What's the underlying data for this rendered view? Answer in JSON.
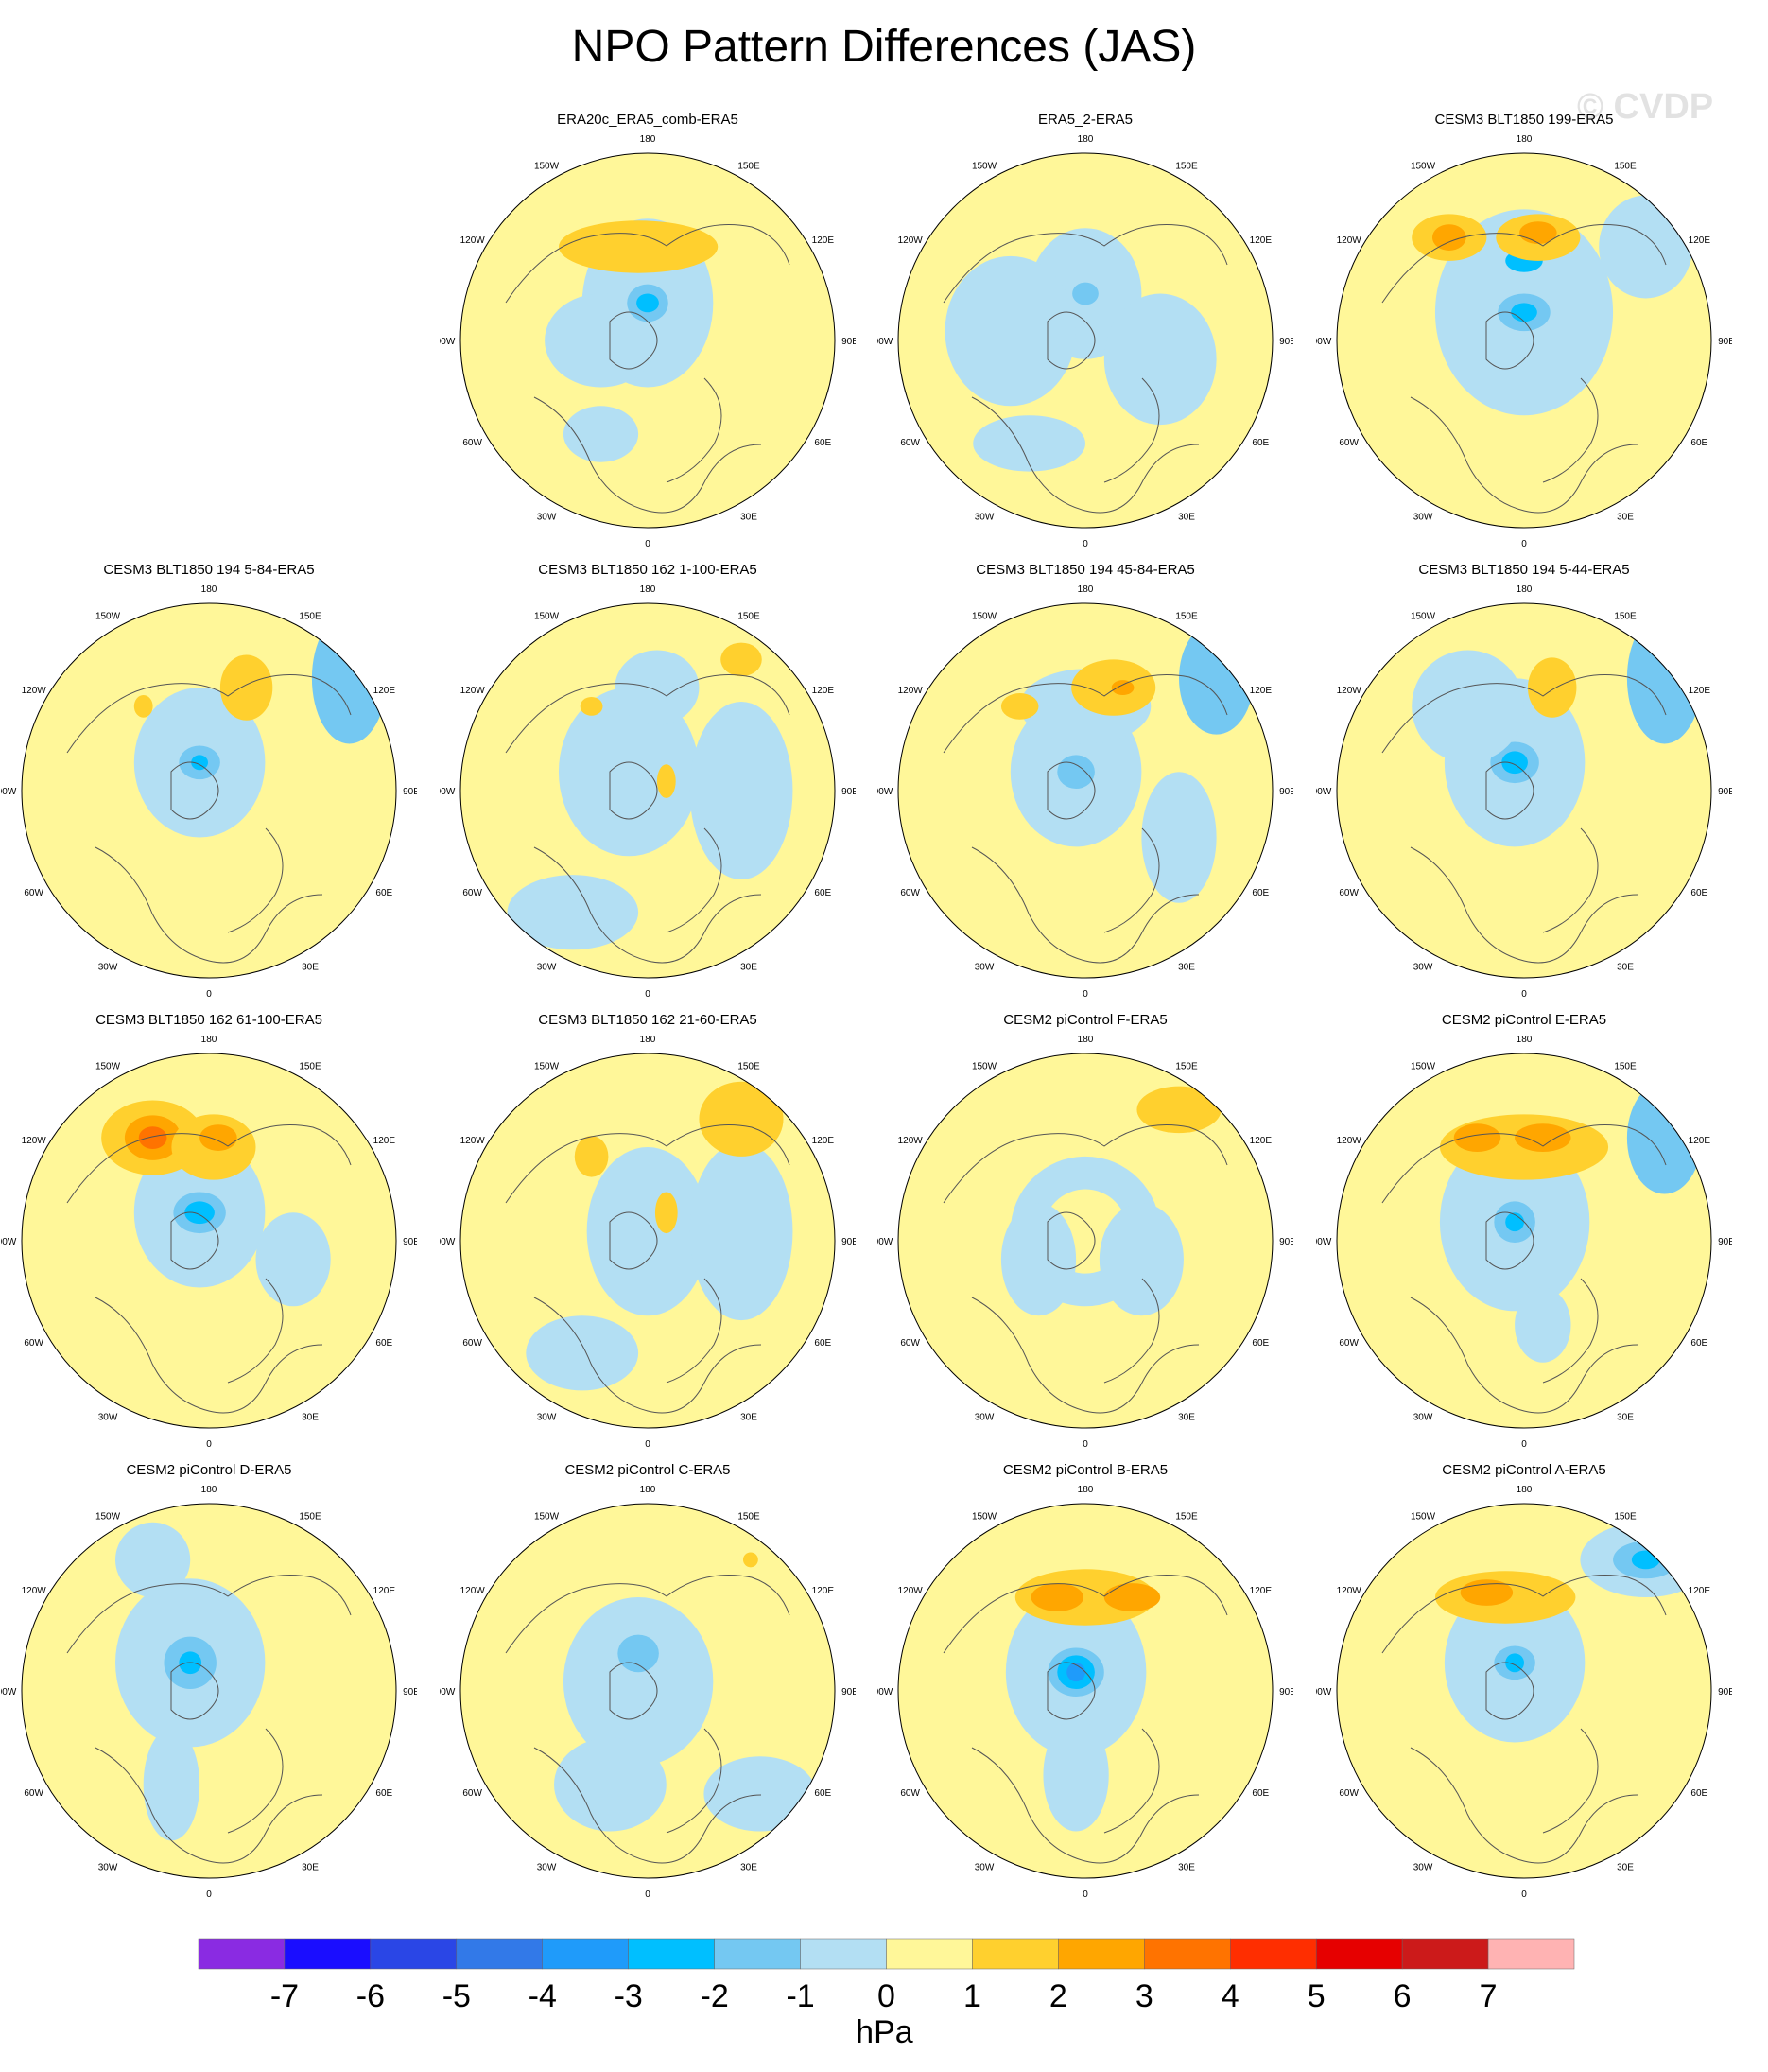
{
  "title": "NPO Pattern Differences (JAS)",
  "watermark": "© CVDP",
  "lon_labels": [
    "180",
    "150E",
    "120E",
    "90E",
    "60E",
    "30E",
    "0",
    "30W",
    "60W",
    "90W",
    "120W",
    "150W"
  ],
  "panels": [
    {
      "title": "ERA20c_ERA5_comb-ERA5"
    },
    {
      "title": "ERA5_2-ERA5"
    },
    {
      "title": "CESM3 BLT1850 199-ERA5"
    },
    {
      "title": "CESM3 BLT1850 194 5-84-ERA5"
    },
    {
      "title": "CESM3 BLT1850 162 1-100-ERA5"
    },
    {
      "title": "CESM3 BLT1850 194 45-84-ERA5"
    },
    {
      "title": "CESM3 BLT1850 194 5-44-ERA5"
    },
    {
      "title": "CESM3 BLT1850 162 61-100-ERA5"
    },
    {
      "title": "CESM3 BLT1850 162 21-60-ERA5"
    },
    {
      "title": "CESM2 piControl F-ERA5"
    },
    {
      "title": "CESM2 piControl E-ERA5"
    },
    {
      "title": "CESM2 piControl D-ERA5"
    },
    {
      "title": "CESM2 piControl C-ERA5"
    },
    {
      "title": "CESM2 piControl B-ERA5"
    },
    {
      "title": "CESM2 piControl A-ERA5"
    }
  ],
  "colorbar": {
    "unit": "hPa",
    "colors": [
      "#8a2be2",
      "#1a0dff",
      "#2a46e6",
      "#3279e8",
      "#1f9bfa",
      "#00bfff",
      "#74c8f2",
      "#b3dff3",
      "#fff799",
      "#ffd02e",
      "#ffa600",
      "#ff7300",
      "#ff2e00",
      "#e60000",
      "#cc1a1a",
      "#ffb3b3"
    ],
    "labels": [
      "-7",
      "-6",
      "-5",
      "-4",
      "-3",
      "-2",
      "-1",
      "0",
      "1",
      "2",
      "3",
      "4",
      "5",
      "6",
      "7"
    ]
  }
}
